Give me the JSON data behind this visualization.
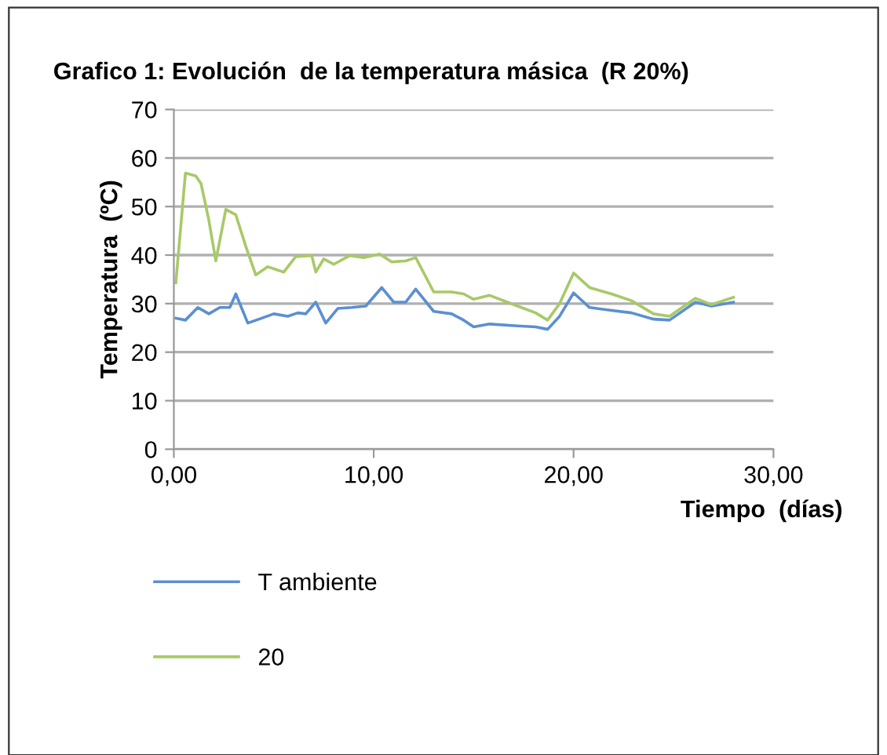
{
  "chart_data": {
    "type": "line",
    "title": "Grafico 1: Evolución  de la temperatura másica  (R 20%)",
    "xlabel": "Tiempo  (días)",
    "ylabel": "Temperatura  (ºC)",
    "xlim": [
      0,
      30
    ],
    "xticks": [
      {
        "value": 0,
        "label": "0,00"
      },
      {
        "value": 10,
        "label": "10,00"
      },
      {
        "value": 20,
        "label": "20,00"
      },
      {
        "value": 30,
        "label": "30,00"
      }
    ],
    "ylim": [
      0,
      70
    ],
    "yticks": [
      0,
      10,
      20,
      30,
      40,
      50,
      60,
      70
    ],
    "grid": "y",
    "legend": "bottom",
    "marker": "none",
    "line_style": "solid",
    "series": [
      {
        "name": "T ambiente",
        "color": "#5b8fd1",
        "x": [
          0.1,
          0.58,
          1.2,
          1.75,
          2.3,
          2.8,
          3.1,
          3.7,
          4.4,
          5.0,
          5.7,
          6.2,
          6.6,
          7.1,
          7.6,
          8.2,
          8.9,
          9.6,
          10.4,
          11.0,
          11.6,
          12.1,
          13.0,
          13.9,
          14.5,
          15.0,
          15.8,
          17.2,
          18.1,
          18.7,
          19.3,
          20.0,
          20.8,
          21.9,
          22.9,
          24.0,
          24.8,
          26.1,
          26.9,
          28.0
        ],
        "values": [
          27.0,
          26.6,
          29.2,
          27.9,
          29.2,
          29.2,
          32.0,
          26.0,
          27.0,
          27.9,
          27.4,
          28.1,
          27.9,
          30.3,
          26.0,
          29.0,
          29.2,
          29.5,
          33.3,
          30.3,
          30.3,
          33.0,
          28.4,
          27.9,
          26.6,
          25.2,
          25.8,
          25.4,
          25.2,
          24.7,
          27.4,
          32.2,
          29.2,
          28.6,
          28.1,
          26.8,
          26.6,
          30.3,
          29.5,
          30.3
        ]
      },
      {
        "name": "20",
        "color": "#a8c968",
        "x": [
          0.1,
          0.58,
          1.1,
          1.36,
          1.75,
          2.1,
          2.6,
          3.1,
          3.6,
          4.1,
          4.7,
          5.5,
          6.1,
          6.9,
          7.1,
          7.5,
          8.0,
          8.8,
          9.5,
          10.3,
          10.9,
          11.6,
          12.1,
          13.0,
          13.9,
          14.5,
          15.0,
          15.8,
          17.2,
          18.1,
          18.7,
          19.3,
          20.0,
          20.8,
          21.9,
          22.9,
          24.0,
          24.8,
          26.1,
          26.9,
          28.0
        ],
        "values": [
          34.3,
          56.9,
          56.3,
          54.7,
          47.2,
          38.8,
          49.4,
          48.3,
          41.8,
          35.9,
          37.6,
          36.5,
          39.7,
          39.9,
          36.5,
          39.2,
          38.1,
          39.9,
          39.5,
          40.2,
          38.6,
          38.8,
          39.5,
          32.4,
          32.4,
          32.0,
          30.9,
          31.7,
          29.5,
          28.1,
          26.6,
          30.0,
          36.3,
          33.3,
          32.0,
          30.6,
          27.9,
          27.4,
          31.1,
          29.8,
          31.3
        ]
      }
    ]
  }
}
